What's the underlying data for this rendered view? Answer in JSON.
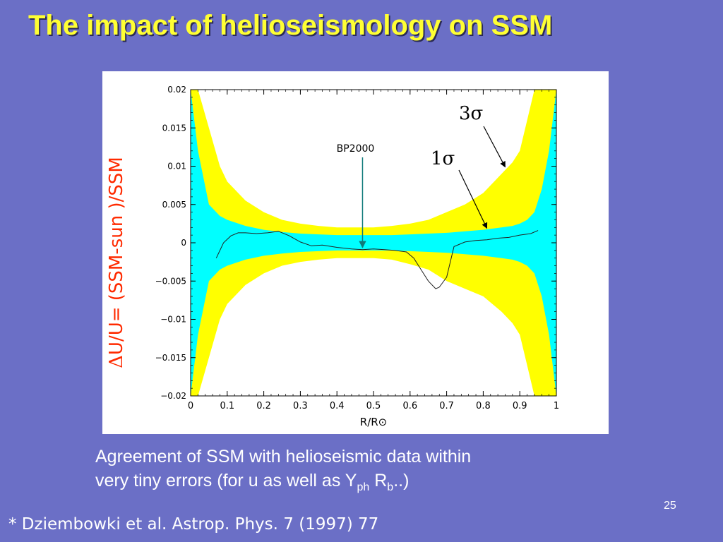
{
  "slide": {
    "title": "The impact of helioseismology on SSM",
    "page_number": "25"
  },
  "caption": {
    "line1": "Agreement of SSM  with helioseismic data within",
    "line2_prefix": "very tiny errors (for u as well as  Y",
    "line2_sub1": "ph",
    "line2_mid": " R",
    "line2_sub2": "b",
    "line2_suffix": "..)"
  },
  "footnote": "* Dziembowki et al.  Astrop. Phys. 7 (1997) 77",
  "colors": {
    "background": "#6b6fc6",
    "title": "#ffff33",
    "band_3sigma": "#ffff00",
    "band_1sigma": "#00ffff",
    "ylabel": "#ff2a00",
    "arrow": "#0f7a7a"
  },
  "chart_data": {
    "type": "line",
    "title": "",
    "xlabel": "R/R⊙",
    "ylabel_prefix": "Δ",
    "ylabel_text": "U/U= (SSM-sun )/SSM",
    "xlim": [
      0,
      1
    ],
    "ylim": [
      -0.02,
      0.02
    ],
    "x_ticks": [
      0,
      0.1,
      0.2,
      0.3,
      0.4,
      0.5,
      0.6,
      0.7,
      0.8,
      0.9,
      1
    ],
    "x_tick_labels": [
      "0",
      "0.1",
      "0.2",
      "0.3",
      "0.4",
      "0.5",
      "0.6",
      "0.7",
      "0.8",
      "0.9",
      "1"
    ],
    "y_ticks": [
      0.02,
      0.015,
      0.01,
      0.005,
      0,
      -0.005,
      -0.01,
      -0.015,
      -0.02
    ],
    "y_tick_labels": [
      "0.02",
      "0.015",
      "0.01",
      "0.005",
      "0",
      "−0.005",
      "−0.01",
      "−0.015",
      "−0.02"
    ],
    "bands": [
      {
        "name": "3σ",
        "x": [
          0.0,
          0.02,
          0.05,
          0.08,
          0.1,
          0.15,
          0.2,
          0.25,
          0.3,
          0.35,
          0.4,
          0.45,
          0.5,
          0.55,
          0.6,
          0.65,
          0.7,
          0.75,
          0.8,
          0.85,
          0.88,
          0.9,
          0.92,
          0.94,
          0.96,
          0.98,
          1.0
        ],
        "upper": [
          0.02,
          0.02,
          0.015,
          0.01,
          0.008,
          0.0055,
          0.004,
          0.003,
          0.0025,
          0.0022,
          0.002,
          0.002,
          0.002,
          0.0022,
          0.0025,
          0.003,
          0.004,
          0.005,
          0.0065,
          0.009,
          0.0105,
          0.012,
          0.016,
          0.02,
          0.02,
          0.02,
          0.02
        ],
        "lower": [
          -0.02,
          -0.02,
          -0.015,
          -0.01,
          -0.008,
          -0.0055,
          -0.004,
          -0.003,
          -0.0025,
          -0.0022,
          -0.002,
          -0.002,
          -0.002,
          -0.0022,
          -0.0028,
          -0.0035,
          -0.005,
          -0.006,
          -0.007,
          -0.009,
          -0.0105,
          -0.012,
          -0.016,
          -0.02,
          -0.02,
          -0.02,
          -0.02
        ]
      },
      {
        "name": "1σ",
        "x": [
          0.0,
          0.02,
          0.05,
          0.08,
          0.1,
          0.15,
          0.2,
          0.25,
          0.3,
          0.35,
          0.4,
          0.45,
          0.5,
          0.55,
          0.6,
          0.65,
          0.7,
          0.75,
          0.8,
          0.85,
          0.88,
          0.9,
          0.92,
          0.94,
          0.96,
          0.98,
          1.0
        ],
        "upper": [
          0.02,
          0.012,
          0.005,
          0.0035,
          0.003,
          0.0022,
          0.0017,
          0.0014,
          0.0012,
          0.0011,
          0.001,
          0.001,
          0.001,
          0.001,
          0.0011,
          0.0012,
          0.0013,
          0.0015,
          0.0017,
          0.002,
          0.0022,
          0.0025,
          0.003,
          0.004,
          0.007,
          0.012,
          0.02
        ],
        "lower": [
          -0.02,
          -0.012,
          -0.005,
          -0.0035,
          -0.003,
          -0.0022,
          -0.0017,
          -0.0014,
          -0.0012,
          -0.0011,
          -0.001,
          -0.001,
          -0.001,
          -0.001,
          -0.0011,
          -0.0012,
          -0.0013,
          -0.0015,
          -0.0017,
          -0.002,
          -0.0022,
          -0.0025,
          -0.003,
          -0.004,
          -0.007,
          -0.012,
          -0.02
        ]
      }
    ],
    "series": [
      {
        "name": "BP2000",
        "x": [
          0.07,
          0.09,
          0.11,
          0.13,
          0.15,
          0.18,
          0.21,
          0.24,
          0.27,
          0.3,
          0.33,
          0.36,
          0.4,
          0.44,
          0.47,
          0.5,
          0.53,
          0.56,
          0.59,
          0.61,
          0.63,
          0.65,
          0.67,
          0.68,
          0.7,
          0.72,
          0.75,
          0.78,
          0.81,
          0.84,
          0.87,
          0.9,
          0.93,
          0.95
        ],
        "y": [
          -0.002,
          0.0,
          0.0009,
          0.0013,
          0.0013,
          0.0012,
          0.0013,
          0.0015,
          0.0009,
          0.0001,
          -0.0004,
          -0.0003,
          -0.0006,
          -0.0008,
          -0.0009,
          -0.0008,
          -0.0009,
          -0.001,
          -0.0012,
          -0.002,
          -0.0035,
          -0.005,
          -0.006,
          -0.0058,
          -0.0045,
          -0.0005,
          0.0001,
          0.0003,
          0.0004,
          0.0006,
          0.0007,
          0.001,
          0.0012,
          0.0016
        ]
      }
    ],
    "annotations": [
      {
        "text": "BP2000",
        "target_x": 0.47,
        "target_y": -0.0009
      },
      {
        "text_prefix": "3",
        "text_symbol": "σ",
        "target_x": 0.86,
        "target_y": 0.0099
      },
      {
        "text_prefix": "1",
        "text_symbol": "σ",
        "target_x": 0.81,
        "target_y": 0.0019
      }
    ]
  }
}
